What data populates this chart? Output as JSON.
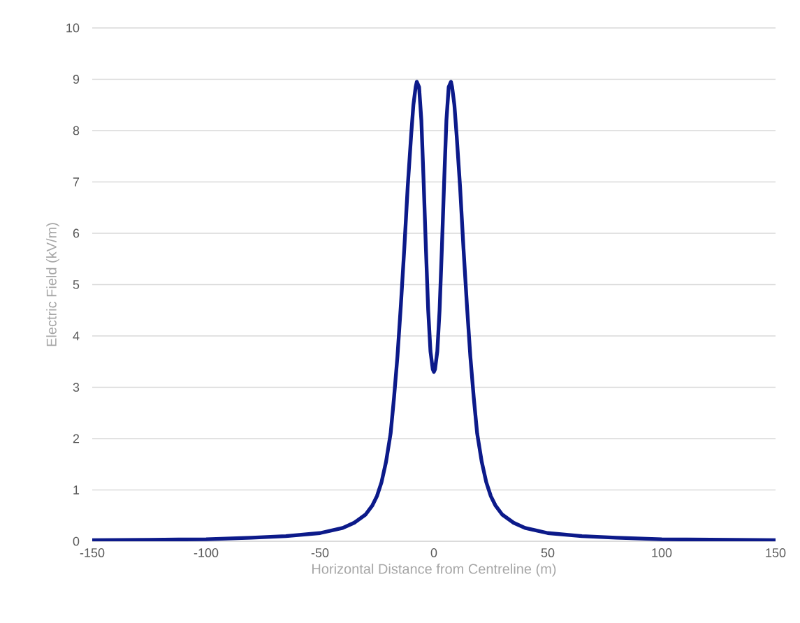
{
  "chart_data": {
    "type": "line",
    "xlabel": "Horizontal Distance from Centreline (m)",
    "ylabel": "Electric Field (kV/m)",
    "color": "#0c1a8a",
    "grid": "y",
    "xlim": [
      -150,
      150
    ],
    "ylim": [
      0,
      10
    ],
    "xticks": [
      -150,
      -100,
      -50,
      0,
      50,
      100,
      150
    ],
    "yticks": [
      0,
      1,
      2,
      3,
      4,
      5,
      6,
      7,
      8,
      9,
      10
    ],
    "x": [
      -150,
      -125,
      -100,
      -80,
      -65,
      -50,
      -40,
      -35,
      -30,
      -27,
      -25,
      -23,
      -21,
      -19,
      -17.5,
      -16,
      -14.5,
      -13,
      -11.5,
      -10,
      -9,
      -8,
      -7.5,
      -6.5,
      -5.5,
      -4.5,
      -3.5,
      -2.5,
      -1.5,
      -0.5,
      0,
      0.5,
      1.5,
      2.5,
      3.5,
      4.5,
      5.5,
      6.5,
      7.5,
      8,
      9,
      10,
      11.5,
      13,
      14.5,
      16,
      17.5,
      19,
      21,
      23,
      25,
      27,
      30,
      35,
      40,
      50,
      65,
      80,
      100,
      125,
      150
    ],
    "values": [
      0.02,
      0.03,
      0.04,
      0.07,
      0.1,
      0.16,
      0.26,
      0.36,
      0.52,
      0.7,
      0.88,
      1.15,
      1.55,
      2.1,
      2.8,
      3.6,
      4.6,
      5.7,
      6.9,
      7.9,
      8.5,
      8.85,
      8.95,
      8.85,
      8.2,
      7.0,
      5.7,
      4.5,
      3.7,
      3.35,
      3.3,
      3.35,
      3.7,
      4.5,
      5.7,
      7.0,
      8.2,
      8.85,
      8.95,
      8.85,
      8.5,
      7.9,
      6.9,
      5.7,
      4.6,
      3.6,
      2.8,
      2.1,
      1.55,
      1.15,
      0.88,
      0.7,
      0.52,
      0.36,
      0.26,
      0.16,
      0.1,
      0.07,
      0.04,
      0.03,
      0.02
    ]
  }
}
